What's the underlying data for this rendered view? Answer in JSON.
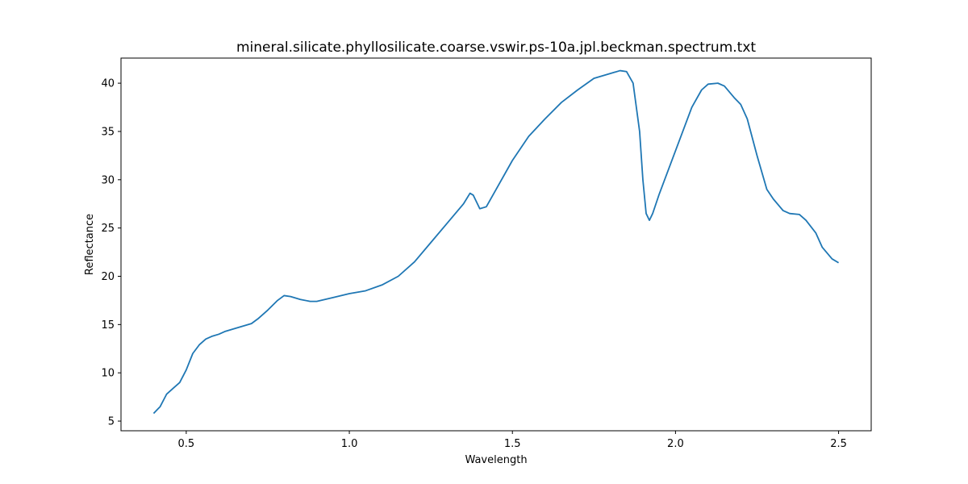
{
  "chart_data": {
    "type": "line",
    "title": "mineral.silicate.phyllosilicate.coarse.vswir.ps-10a.jpl.beckman.spectrum.txt",
    "xlabel": "Wavelength",
    "ylabel": "Reflectance",
    "xlim": [
      0.3,
      2.6
    ],
    "ylim": [
      4.0,
      42.6
    ],
    "xticks": [
      "0.5",
      "1.0",
      "1.5",
      "2.0",
      "2.5"
    ],
    "yticks": [
      "5",
      "10",
      "15",
      "20",
      "25",
      "30",
      "35",
      "40"
    ],
    "grid": false,
    "color": "#1f77b4",
    "series": [
      {
        "x": [
          0.4,
          0.42,
          0.44,
          0.46,
          0.48,
          0.5,
          0.52,
          0.54,
          0.56,
          0.58,
          0.6,
          0.62,
          0.65,
          0.7,
          0.72,
          0.75,
          0.78,
          0.8,
          0.82,
          0.85,
          0.88,
          0.9,
          0.95,
          1.0,
          1.05,
          1.1,
          1.15,
          1.2,
          1.25,
          1.3,
          1.35,
          1.37,
          1.38,
          1.4,
          1.42,
          1.45,
          1.5,
          1.55,
          1.6,
          1.65,
          1.7,
          1.75,
          1.8,
          1.83,
          1.85,
          1.87,
          1.89,
          1.9,
          1.91,
          1.92,
          1.93,
          1.95,
          2.0,
          2.05,
          2.08,
          2.1,
          2.13,
          2.15,
          2.18,
          2.2,
          2.22,
          2.25,
          2.28,
          2.3,
          2.33,
          2.35,
          2.38,
          2.4,
          2.43,
          2.45,
          2.48,
          2.5
        ],
        "y": [
          5.8,
          6.5,
          7.8,
          8.4,
          9.0,
          10.3,
          12.0,
          12.9,
          13.5,
          13.8,
          14.0,
          14.3,
          14.6,
          15.1,
          15.6,
          16.5,
          17.5,
          18.0,
          17.9,
          17.6,
          17.4,
          17.4,
          17.8,
          18.2,
          18.5,
          19.1,
          20.0,
          21.5,
          23.5,
          25.5,
          27.5,
          28.6,
          28.4,
          27.0,
          27.2,
          29.0,
          32.0,
          34.5,
          36.3,
          38.0,
          39.3,
          40.5,
          41.0,
          41.3,
          41.2,
          40.0,
          35.0,
          30.0,
          26.5,
          25.8,
          26.5,
          28.5,
          33.0,
          37.5,
          39.3,
          39.9,
          40.0,
          39.7,
          38.5,
          37.8,
          36.3,
          32.5,
          29.0,
          28.0,
          26.8,
          26.5,
          26.4,
          25.8,
          24.5,
          23.0,
          21.8,
          21.4
        ]
      }
    ]
  }
}
